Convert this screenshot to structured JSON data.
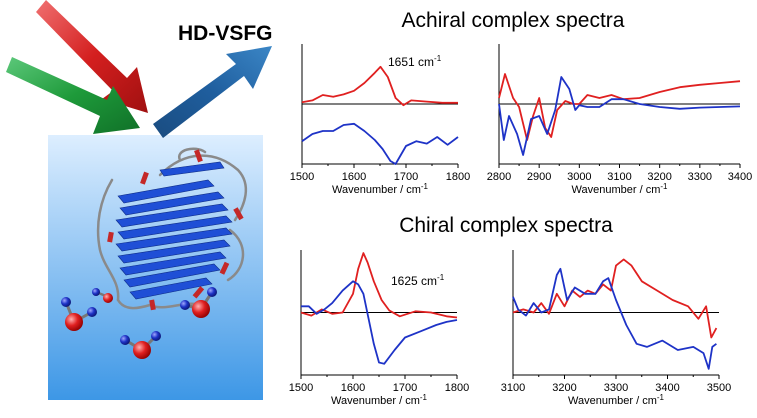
{
  "figure": {
    "header_label": "HD-VSFG",
    "achiral_title": "Achiral complex spectra",
    "chiral_title": "Chiral complex spectra"
  },
  "illustration": {
    "beam_colors": {
      "incident_red": "#d41f1f",
      "incident_green": "#1e9a3a",
      "outgoing_blue": "#1f5e9e"
    },
    "interface_gradient": [
      "#ddeeff",
      "#3d97e6"
    ],
    "protein_color": "#1f4fd6",
    "water_oxygen": "#e02020",
    "water_hydrogen": "#1e33c7"
  },
  "chart_data": [
    {
      "id": "achiral-amide",
      "type": "line",
      "xlabel": "Wavenumber / cm",
      "xlabel_sup": "-1",
      "xlim": [
        1500,
        1800
      ],
      "xticks": [
        1500,
        1600,
        1700,
        1800
      ],
      "ylim": [
        -1,
        1
      ],
      "annotation": "1651 cm",
      "annotation_sup": "-1",
      "series": [
        {
          "color": "#e02020",
          "x": [
            1500,
            1520,
            1540,
            1560,
            1580,
            1600,
            1620,
            1640,
            1651,
            1665,
            1680,
            1695,
            1710,
            1740,
            1770,
            1800
          ],
          "y": [
            0.03,
            0.06,
            0.15,
            0.12,
            0.16,
            0.22,
            0.35,
            0.52,
            0.62,
            0.45,
            0.1,
            -0.02,
            0.06,
            0.04,
            0.02,
            0.02
          ]
        },
        {
          "color": "#1e33c7",
          "x": [
            1500,
            1520,
            1540,
            1560,
            1580,
            1600,
            1620,
            1640,
            1655,
            1670,
            1680,
            1690,
            1700,
            1720,
            1740,
            1760,
            1780,
            1800
          ],
          "y": [
            -0.62,
            -0.5,
            -0.45,
            -0.45,
            -0.35,
            -0.33,
            -0.45,
            -0.6,
            -0.75,
            -0.95,
            -1.0,
            -0.85,
            -0.7,
            -0.62,
            -0.66,
            -0.55,
            -0.68,
            -0.55
          ]
        }
      ]
    },
    {
      "id": "achiral-ch",
      "type": "line",
      "xlabel": "Wavenumber / cm",
      "xlabel_sup": "-1",
      "xlim": [
        2800,
        3400
      ],
      "xticks": [
        2800,
        2900,
        3000,
        3100,
        3200,
        3300,
        3400
      ],
      "ylim": [
        -1,
        1
      ],
      "series": [
        {
          "color": "#e02020",
          "x": [
            2800,
            2815,
            2835,
            2850,
            2870,
            2885,
            2900,
            2915,
            2930,
            2945,
            2965,
            2985,
            3000,
            3020,
            3050,
            3080,
            3110,
            3150,
            3200,
            3250,
            3300,
            3350,
            3400
          ],
          "y": [
            0.1,
            0.5,
            0.1,
            -0.05,
            -0.6,
            -0.2,
            0.1,
            -0.4,
            -0.55,
            -0.1,
            0.05,
            0.0,
            0.0,
            0.15,
            0.1,
            0.15,
            0.08,
            0.1,
            0.2,
            0.28,
            0.32,
            0.35,
            0.38
          ]
        },
        {
          "color": "#1e33c7",
          "x": [
            2800,
            2812,
            2825,
            2845,
            2860,
            2880,
            2900,
            2920,
            2940,
            2955,
            2975,
            2990,
            3000,
            3020,
            3050,
            3080,
            3110,
            3150,
            3200,
            3250,
            3300,
            3350,
            3400
          ],
          "y": [
            0.0,
            -0.6,
            -0.2,
            -0.5,
            -0.85,
            -0.25,
            -0.2,
            -0.5,
            -0.1,
            0.45,
            0.25,
            -0.1,
            -0.02,
            -0.05,
            -0.05,
            0.08,
            0.08,
            0.0,
            -0.05,
            -0.08,
            -0.06,
            -0.05,
            -0.04
          ]
        }
      ]
    },
    {
      "id": "chiral-amide",
      "type": "line",
      "xlabel": "Wavenumber / cm",
      "xlabel_sup": "-1",
      "xlim": [
        1500,
        1800
      ],
      "xticks": [
        1500,
        1600,
        1700,
        1800
      ],
      "ylim": [
        -1,
        1
      ],
      "annotation": "1625 cm",
      "annotation_sup": "-1",
      "series": [
        {
          "color": "#e02020",
          "x": [
            1500,
            1520,
            1540,
            1560,
            1580,
            1600,
            1610,
            1620,
            1628,
            1640,
            1655,
            1670,
            1690,
            1720,
            1750,
            1780,
            1800
          ],
          "y": [
            0.0,
            -0.05,
            0.05,
            -0.02,
            0.0,
            0.3,
            0.7,
            0.95,
            0.8,
            0.5,
            0.2,
            0.03,
            -0.06,
            0.02,
            0.0,
            -0.06,
            -0.08
          ]
        },
        {
          "color": "#1e33c7",
          "x": [
            1500,
            1515,
            1530,
            1545,
            1560,
            1580,
            1600,
            1610,
            1620,
            1630,
            1640,
            1650,
            1660,
            1680,
            1700,
            1730,
            1760,
            1780,
            1800
          ],
          "y": [
            0.1,
            0.1,
            -0.02,
            0.05,
            0.15,
            0.35,
            0.5,
            0.45,
            0.3,
            -0.1,
            -0.5,
            -0.8,
            -0.82,
            -0.6,
            -0.4,
            -0.3,
            -0.2,
            -0.15,
            -0.12
          ]
        }
      ]
    },
    {
      "id": "chiral-ch",
      "type": "line",
      "xlabel": "Wavenumber / cm",
      "xlabel_sup": "-1",
      "xlim": [
        3100,
        3500
      ],
      "xticks": [
        3100,
        3200,
        3300,
        3400,
        3500
      ],
      "ylim": [
        -1,
        1
      ],
      "series": [
        {
          "color": "#e02020",
          "x": [
            3100,
            3120,
            3140,
            3155,
            3170,
            3185,
            3200,
            3215,
            3230,
            3245,
            3260,
            3275,
            3290,
            3300,
            3315,
            3330,
            3350,
            3380,
            3410,
            3440,
            3460,
            3475,
            3485,
            3495
          ],
          "y": [
            0.0,
            0.05,
            0.0,
            0.15,
            -0.02,
            0.3,
            0.1,
            0.35,
            0.25,
            0.35,
            0.3,
            0.45,
            0.35,
            0.75,
            0.85,
            0.75,
            0.5,
            0.35,
            0.2,
            0.1,
            -0.1,
            0.1,
            -0.4,
            -0.25
          ]
        },
        {
          "color": "#1e33c7",
          "x": [
            3100,
            3110,
            3125,
            3140,
            3155,
            3170,
            3185,
            3192,
            3205,
            3220,
            3240,
            3260,
            3275,
            3285,
            3300,
            3320,
            3340,
            3360,
            3390,
            3420,
            3450,
            3470,
            3480,
            3487,
            3495
          ],
          "y": [
            0.25,
            0.05,
            -0.05,
            0.15,
            0.0,
            0.05,
            0.6,
            0.7,
            0.2,
            0.4,
            0.3,
            0.3,
            0.5,
            0.55,
            0.2,
            -0.2,
            -0.5,
            -0.55,
            -0.45,
            -0.6,
            -0.55,
            -0.65,
            -0.9,
            -0.55,
            -0.5
          ]
        }
      ]
    }
  ]
}
